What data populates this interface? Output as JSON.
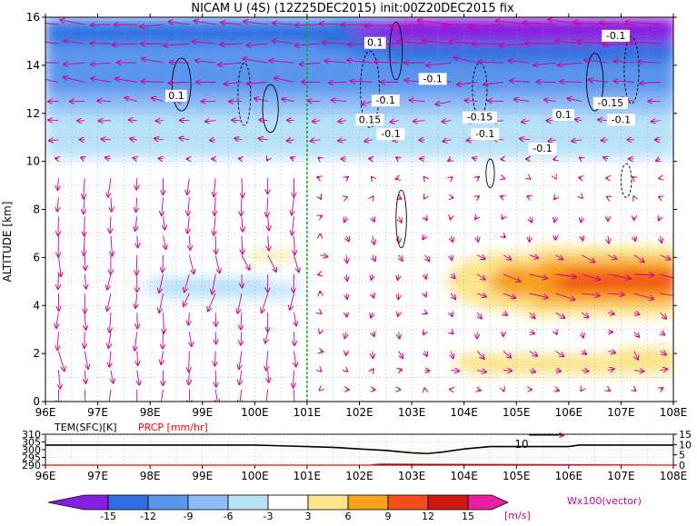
{
  "title": "NICAM U (4S) (12Z25DEC2015) init:00Z20DEC2015 fix",
  "colors": {
    "c_m15": "#8a1ee0",
    "c_m12": "#2e6fe0",
    "c_m9": "#5a95ee",
    "c_m6": "#8dbbf6",
    "c_m3": "#b8e2f8",
    "c_0": "#ffffff",
    "c_3": "#fbe48a",
    "c_6": "#f8a11c",
    "c_9": "#f25018",
    "c_12": "#cc1a10",
    "c_15": "#e81fa0",
    "vector": "#d00090",
    "contour": "#000000",
    "marker_line": "#00aa00",
    "precip_text": "#ff0000"
  },
  "chart_data": [
    {
      "type": "heatmap",
      "title": "NICAM U (4S) (12Z25DEC2015) init:00Z20DEC2015 fix",
      "ylabel": "ALTITUDE [km]",
      "xlabel": "",
      "x_ticks": [
        "96E",
        "97E",
        "98E",
        "99E",
        "100E",
        "101E",
        "102E",
        "103E",
        "104E",
        "105E",
        "106E",
        "107E",
        "108E"
      ],
      "xlim": [
        96,
        108
      ],
      "y_ticks": [
        "0",
        "2",
        "4",
        "6",
        "8",
        "10",
        "12",
        "14",
        "16"
      ],
      "ylim": [
        0,
        16
      ],
      "grid": true,
      "vertical_marker_lon": 101,
      "contour_labels": [
        {
          "text": "0.1",
          "lon": 102.3,
          "alt": 14.8
        },
        {
          "text": "-0.1",
          "lon": 106.9,
          "alt": 15.1
        },
        {
          "text": "-0.1",
          "lon": 103.4,
          "alt": 13.3
        },
        {
          "text": "0.1",
          "lon": 98.5,
          "alt": 12.6
        },
        {
          "text": "-0.1",
          "lon": 102.5,
          "alt": 12.4
        },
        {
          "text": "0.15",
          "lon": 102.2,
          "alt": 11.6
        },
        {
          "text": "-0.1",
          "lon": 102.6,
          "alt": 11.0
        },
        {
          "text": "-0.15",
          "lon": 104.3,
          "alt": 11.7
        },
        {
          "text": "-0.1",
          "lon": 104.4,
          "alt": 11.0
        },
        {
          "text": "-0.1",
          "lon": 105.5,
          "alt": 10.4
        },
        {
          "text": "0.1",
          "lon": 105.9,
          "alt": 11.8
        },
        {
          "text": "-0.15",
          "lon": 106.8,
          "alt": 12.3
        },
        {
          "text": "-0.1",
          "lon": 107.0,
          "alt": 11.6
        }
      ]
    },
    {
      "type": "line",
      "left_label": "TEM(SFC)[K]",
      "right_label": "PRCP [mm/hr]",
      "left_ticks": [
        "310",
        "305",
        "300",
        "295",
        "290"
      ],
      "left_ylim": [
        290,
        310
      ],
      "right_ticks": [
        "15",
        "10",
        "5",
        "0"
      ],
      "right_ylim": [
        0,
        15
      ],
      "x_ticks": [
        "96E",
        "97E",
        "98E",
        "99E",
        "100E",
        "101E",
        "102E",
        "103E",
        "104E",
        "105E",
        "106E",
        "107E",
        "108E"
      ],
      "xlim": [
        96,
        108
      ],
      "series": [
        {
          "x": [
            96,
            97,
            98,
            99,
            100,
            100.5,
            101,
            101.5,
            102,
            102.5,
            103,
            103.3,
            103.6,
            104,
            104.5,
            105,
            105.5,
            106,
            106.2,
            107,
            108
          ],
          "values": [
            303,
            303,
            303,
            303,
            303,
            302.5,
            302,
            301.5,
            300.5,
            299.5,
            298,
            297.5,
            298.5,
            300.5,
            302,
            302,
            302,
            302,
            303,
            303,
            303
          ]
        },
        {
          "x": [
            96,
            102.2,
            102.4,
            108
          ],
          "values": [
            0,
            0,
            0.5,
            0
          ]
        }
      ],
      "annotation": "10"
    }
  ],
  "colorbar": {
    "labels": [
      "-15",
      "-12",
      "-9",
      "-6",
      "-3",
      "3",
      "6",
      "9",
      "12",
      "15"
    ],
    "unit": "[m/s]"
  },
  "vector_label": "Wx100(vector)"
}
